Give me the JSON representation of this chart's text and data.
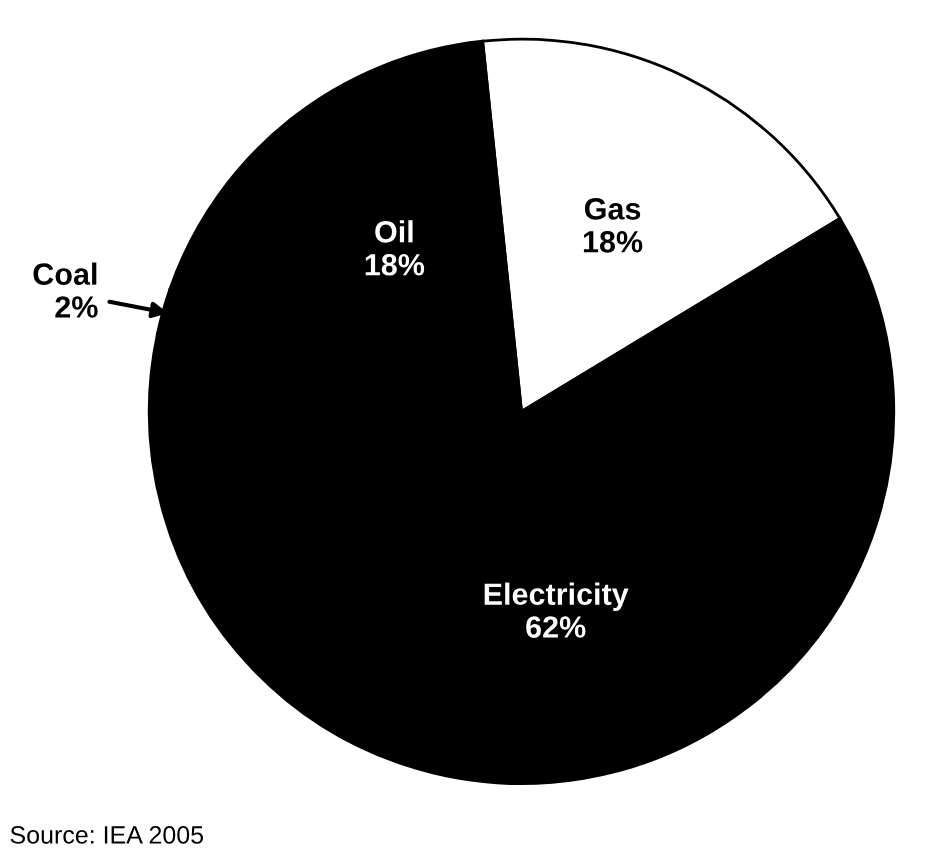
{
  "chart_data": {
    "type": "pie",
    "categories": [
      "Gas",
      "Electricity",
      "Coal",
      "Oil"
    ],
    "values": [
      18,
      62,
      2,
      18
    ],
    "colors": [
      "#ffffff",
      "#000000",
      "#000000",
      "#000000"
    ],
    "value_labels": [
      "18%",
      "62%",
      "2%",
      "18%"
    ],
    "annotations": [
      "Source: IEA 2005"
    ]
  }
}
